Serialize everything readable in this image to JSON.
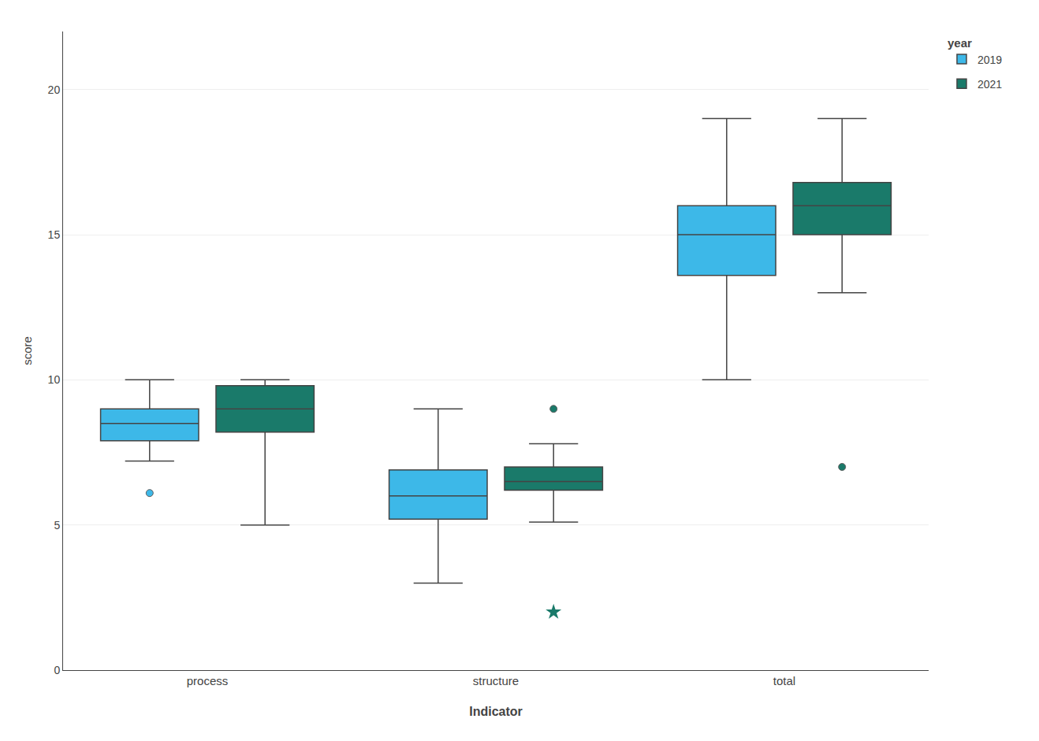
{
  "chart_data": {
    "type": "box",
    "xlabel": "Indicator",
    "ylabel": "score",
    "legend_title": "year",
    "categories": [
      "process",
      "structure",
      "total"
    ],
    "series": [
      {
        "name": "2019",
        "color": "#3db8e8",
        "q1": [
          7.9,
          5.2,
          13.6
        ],
        "median": [
          8.5,
          6.0,
          15.0
        ],
        "q3": [
          9.0,
          6.9,
          16.0
        ],
        "whislo": [
          7.2,
          3.0,
          10.0
        ],
        "whishi": [
          10.0,
          9.0,
          19.0
        ],
        "fliers": [
          [
            6.1
          ],
          [],
          []
        ]
      },
      {
        "name": "2021",
        "color": "#1a7a6a",
        "q1": [
          8.2,
          6.2,
          15.0
        ],
        "median": [
          9.0,
          6.5,
          16.0
        ],
        "q3": [
          9.8,
          7.0,
          16.8
        ],
        "whislo": [
          5.0,
          5.1,
          13.0
        ],
        "whishi": [
          10.0,
          7.8,
          19.0
        ],
        "fliers": [
          [],
          [
            9.0
          ],
          [
            7.0
          ]
        ],
        "extra_points": [
          {
            "category": "structure",
            "value": 2.0,
            "marker": "star"
          }
        ]
      }
    ],
    "ylim": [
      0,
      22
    ],
    "yticks": [
      0,
      5,
      10,
      15,
      20
    ],
    "grid": true,
    "legend": "upper right"
  }
}
